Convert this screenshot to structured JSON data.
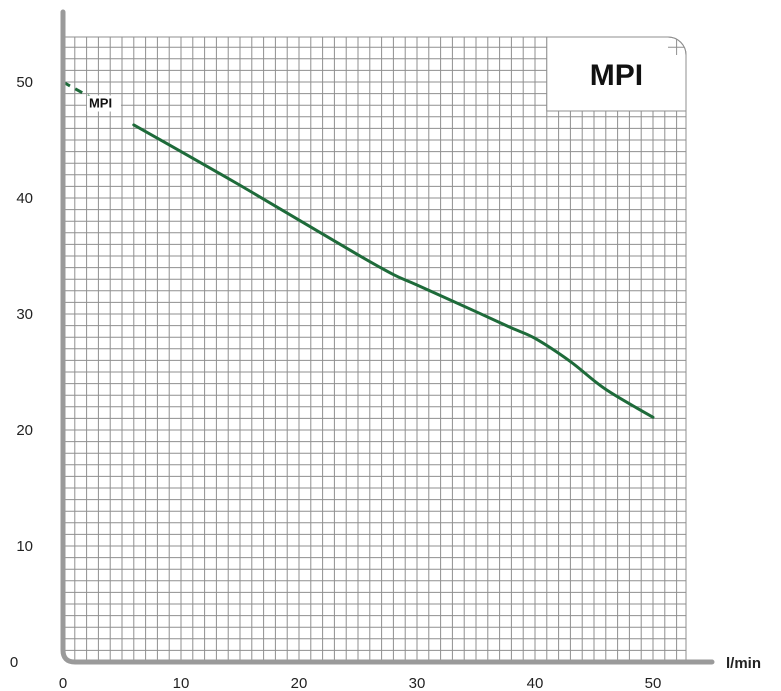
{
  "chart_data": {
    "type": "line",
    "title": "MPI",
    "xlabel": "l/min",
    "ylabel": "",
    "xlim": [
      0,
      52
    ],
    "ylim": [
      0,
      55
    ],
    "x_ticks": [
      0,
      10,
      20,
      30,
      40,
      50
    ],
    "y_ticks": [
      0,
      10,
      20,
      30,
      40,
      50
    ],
    "grid": true,
    "series": [
      {
        "name": "MPI",
        "color": "#1e6b3a",
        "dashed_segment": {
          "x": [
            0,
            3
          ],
          "y": [
            50,
            48.3
          ]
        },
        "x": [
          6,
          10,
          15,
          20,
          25,
          28,
          30,
          35,
          38,
          40,
          43,
          46,
          50
        ],
        "y": [
          46.3,
          44.0,
          41.1,
          38.1,
          35.1,
          33.4,
          32.5,
          30.2,
          28.8,
          27.9,
          25.9,
          23.5,
          21.1
        ]
      }
    ]
  },
  "colors": {
    "grid": "#8f8f8f",
    "axis": "#9a9a9a",
    "curve": "#1e6b3a"
  }
}
